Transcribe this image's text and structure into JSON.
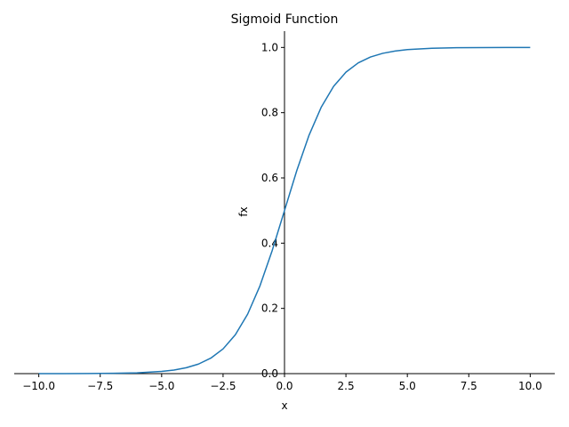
{
  "chart_data": {
    "type": "line",
    "title": "Sigmoid Function",
    "xlabel": "x",
    "ylabel": "fx",
    "xlim": [
      -11,
      11
    ],
    "ylim": [
      0,
      1.05
    ],
    "x_ticks": [
      -10.0,
      -7.5,
      -5.0,
      -2.5,
      0.0,
      2.5,
      5.0,
      7.5,
      10.0
    ],
    "x_tick_labels": [
      "−10.0",
      "−7.5",
      "−5.0",
      "−2.5",
      "0.0",
      "2.5",
      "5.0",
      "7.5",
      "10.0"
    ],
    "y_ticks": [
      0.0,
      0.2,
      0.4,
      0.6,
      0.8,
      1.0
    ],
    "y_tick_labels": [
      "0.0",
      "0.2",
      "0.4",
      "0.6",
      "0.8",
      "1.0"
    ],
    "grid": false,
    "spines": "centered axes at x=0 (left) and y=0 (bottom); top and right hidden",
    "series": [
      {
        "color": "#1f77b4",
        "x": [
          -10,
          -9,
          -8,
          -7,
          -6,
          -5,
          -4.5,
          -4,
          -3.5,
          -3,
          -2.5,
          -2,
          -1.5,
          -1,
          -0.5,
          0,
          0.5,
          1,
          1.5,
          2,
          2.5,
          3,
          3.5,
          4,
          4.5,
          5,
          6,
          7,
          8,
          9,
          10
        ],
        "y": [
          4.54e-05,
          0.0001234,
          0.0003354,
          0.000911,
          0.002473,
          0.006693,
          0.01099,
          0.01799,
          0.02931,
          0.04743,
          0.07586,
          0.1192,
          0.1824,
          0.2689,
          0.3775,
          0.5,
          0.6225,
          0.7311,
          0.8176,
          0.8808,
          0.9241,
          0.9526,
          0.9707,
          0.982,
          0.989,
          0.9933,
          0.9975,
          0.9991,
          0.9997,
          0.9999,
          0.99995
        ]
      }
    ]
  }
}
